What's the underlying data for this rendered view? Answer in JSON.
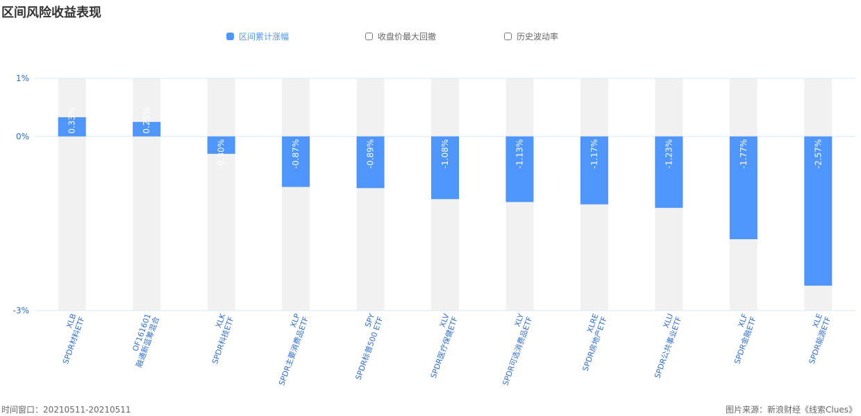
{
  "title": "区间风险收益表现",
  "legend": [
    {
      "label": "区间累计涨幅",
      "active": true
    },
    {
      "label": "收盘价最大回撤",
      "active": false
    },
    {
      "label": "历史波动率",
      "active": false
    }
  ],
  "colors": {
    "bar": "#4e96fc",
    "band": "#f1f1f1",
    "axis_text": "#2f6fd6",
    "grid": "#d9eaf7",
    "bar_label": "#ffffff"
  },
  "chart_data": {
    "type": "bar",
    "categories": [
      {
        "code": "XLB",
        "name": "SPDR材料ETF"
      },
      {
        "code": "OF161601",
        "name": "融通新蓝筹混合"
      },
      {
        "code": "XLK",
        "name": "SPDR科技ETF"
      },
      {
        "code": "XLP",
        "name": "SPDR主要消费品ETF"
      },
      {
        "code": "SPY",
        "name": "SPDR标普500 ETF"
      },
      {
        "code": "XLV",
        "name": "SPDR医疗保健ETF"
      },
      {
        "code": "XLY",
        "name": "SPDR可选消费品ETF"
      },
      {
        "code": "XLRE",
        "name": "SPDR房地产ETF"
      },
      {
        "code": "XLU",
        "name": "SPDR公共事业ETF"
      },
      {
        "code": "XLF",
        "name": "SPDR金融ETF"
      },
      {
        "code": "XLE",
        "name": "SPDR能源ETF"
      }
    ],
    "series": [
      {
        "name": "区间累计涨幅",
        "values": [
          0.33,
          0.25,
          -0.3,
          -0.87,
          -0.89,
          -1.08,
          -1.13,
          -1.17,
          -1.23,
          -1.77,
          -2.57
        ]
      }
    ],
    "value_labels": [
      "0.33%",
      "0.25%",
      "-0.30%",
      "-0.87%",
      "-0.89%",
      "-1.08%",
      "-1.13%",
      "-1.17%",
      "-1.23%",
      "-1.77%",
      "-2.57%"
    ],
    "y_ticks": [
      {
        "value": 1,
        "label": "1%"
      },
      {
        "value": 0,
        "label": "0%"
      },
      {
        "value": -3,
        "label": "-3%"
      }
    ],
    "ylim": [
      -3,
      1
    ]
  },
  "footer": {
    "left": "时间窗口：20210511-20210511",
    "right": "图片来源：新浪财经《线索Clues》"
  }
}
